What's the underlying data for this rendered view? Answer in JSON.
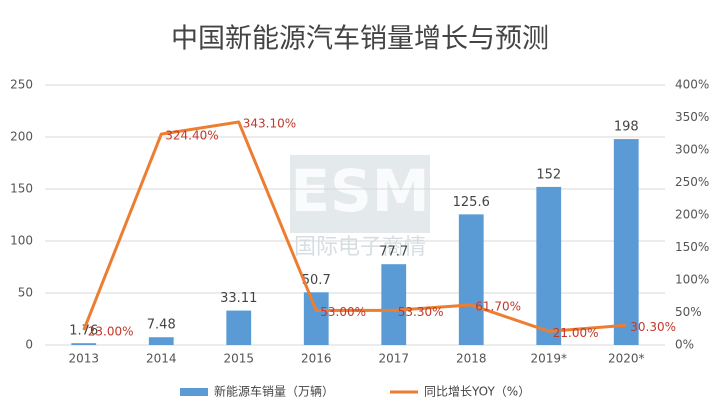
{
  "chart_data": {
    "type": "bar-line",
    "title": "中国新能源汽车销量增长与预测",
    "categories": [
      "2013",
      "2014",
      "2015",
      "2016",
      "2017",
      "2018",
      "2019*",
      "2020*"
    ],
    "series": [
      {
        "name": "新能源车销量（万辆）",
        "type": "bar",
        "color": "#5b9bd5",
        "values": [
          1.76,
          7.48,
          33.11,
          50.7,
          77.7,
          125.6,
          152,
          198
        ]
      },
      {
        "name": "同比增长YOY（%）",
        "type": "line",
        "axis": "y2",
        "color": "#ed7d31",
        "label_color": "#c0392b",
        "values": [
          23,
          324.4,
          343.1,
          53,
          53.3,
          61.7,
          21,
          30.3
        ],
        "value_labels": [
          "23.00%",
          "324.40%",
          "343.10%",
          "53.00%",
          "53.30%",
          "61.70%",
          "21.00%",
          "30.30%"
        ]
      }
    ],
    "ylim": [
      0,
      250
    ],
    "yticks": [
      0,
      50,
      100,
      150,
      200,
      250
    ],
    "y2lim": [
      0,
      400
    ],
    "y2ticks": [
      {
        "value": 0,
        "label": "0%"
      },
      {
        "value": 50,
        "label": "50%"
      },
      {
        "value": 100,
        "label": "100%"
      },
      {
        "value": 150,
        "label": "150%"
      },
      {
        "value": 200,
        "label": "200%"
      },
      {
        "value": 250,
        "label": "250%"
      },
      {
        "value": 300,
        "label": "300%"
      },
      {
        "value": 350,
        "label": "350%"
      },
      {
        "value": 400,
        "label": "400%"
      }
    ],
    "grid": true,
    "watermark": {
      "logo": "ESM",
      "text": "国际电子商情"
    }
  }
}
